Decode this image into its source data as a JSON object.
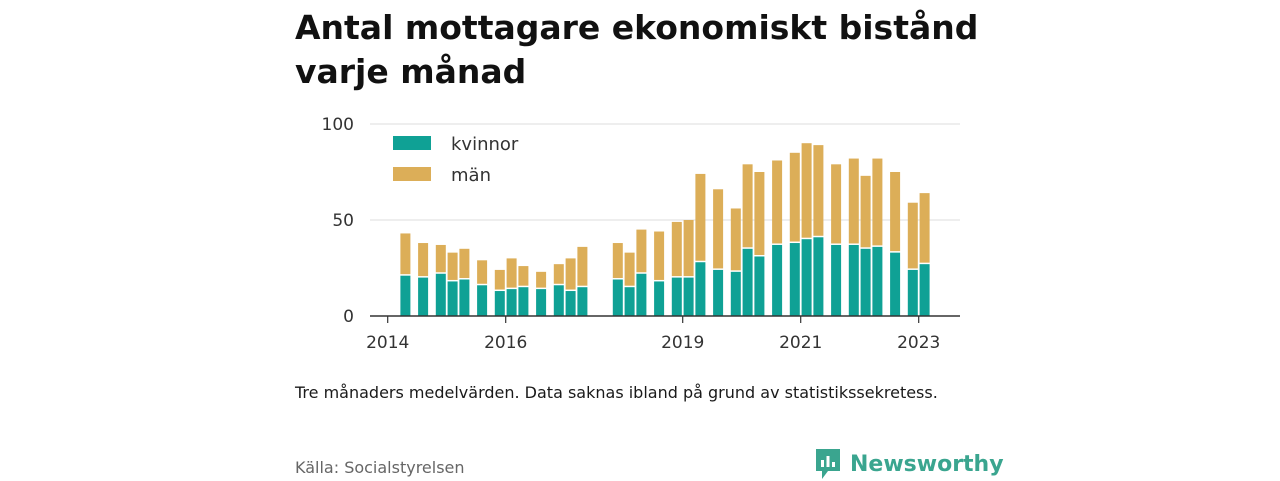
{
  "title": "Antal mottagare ekonomiskt bistånd varje månad",
  "note": "Tre månaders medelvärden. Data saknas ibland på grund av statistikssekretess.",
  "source": "Källa: Socialstyrelsen",
  "brand": {
    "name": "Newsworthy",
    "icon": "newsworthy-logo-icon"
  },
  "colors": {
    "kvinnor": "#0fa195",
    "man": "#dcae58",
    "axis": "#333333",
    "grid": "#dddddd"
  },
  "chart_data": {
    "type": "bar",
    "stacked": true,
    "legend_position": "top-left",
    "grid": true,
    "ylim": [
      0,
      100
    ],
    "y_ticks": [
      0,
      50,
      100
    ],
    "x_ticks": [
      {
        "label": "2014",
        "x": 2014.0
      },
      {
        "label": "2016",
        "x": 2016.0
      },
      {
        "label": "2019",
        "x": 2019.0
      },
      {
        "label": "2021",
        "x": 2021.0
      },
      {
        "label": "2023",
        "x": 2023.0
      }
    ],
    "x_range": [
      2013.7,
      2023.7
    ],
    "x": [
      2014.3,
      2014.6,
      2014.9,
      2015.1,
      2015.3,
      2015.6,
      2015.9,
      2016.1,
      2016.3,
      2016.6,
      2016.9,
      2017.1,
      2017.3,
      2017.9,
      2018.1,
      2018.3,
      2018.6,
      2018.9,
      2019.1,
      2019.3,
      2019.6,
      2019.9,
      2020.1,
      2020.3,
      2020.6,
      2020.9,
      2021.1,
      2021.3,
      2021.6,
      2021.9,
      2022.1,
      2022.3,
      2022.6,
      2022.9,
      2023.1
    ],
    "series": [
      {
        "name": "kvinnor",
        "values": [
          21,
          20,
          22,
          18,
          19,
          16,
          13,
          14,
          15,
          14,
          16,
          13,
          15,
          19,
          15,
          22,
          18,
          20,
          20,
          28,
          24,
          23,
          35,
          31,
          37,
          38,
          40,
          41,
          37,
          37,
          35,
          36,
          33,
          24,
          27
        ]
      },
      {
        "name": "män",
        "values": [
          22,
          18,
          15,
          15,
          16,
          13,
          11,
          16,
          11,
          9,
          11,
          17,
          21,
          19,
          18,
          23,
          26,
          29,
          30,
          46,
          42,
          33,
          44,
          44,
          44,
          47,
          50,
          48,
          42,
          45,
          38,
          46,
          42,
          35,
          37
        ]
      }
    ]
  }
}
